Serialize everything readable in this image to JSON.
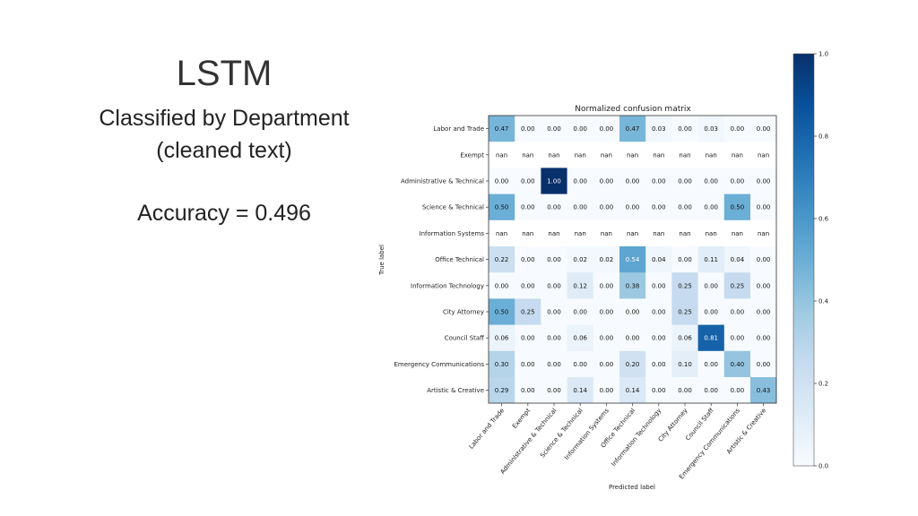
{
  "slide": {
    "title": "LSTM",
    "subtitle_line1": "Classified by Department",
    "subtitle_line2": "(cleaned text)",
    "accuracy": "Accuracy = 0.496"
  },
  "chart_data": {
    "type": "heatmap",
    "title": "Normalized confusion matrix",
    "xlabel": "Predicted label",
    "ylabel": "True label",
    "labels": [
      "Labor and Trade",
      "Exempt",
      "Administrative & Technical",
      "Science & Technical",
      "Information Systems",
      "Office Technical",
      "Information Technology",
      "City Attorney",
      "Council Staff",
      "Emergency Communications",
      "Artistic & Creative"
    ],
    "matrix": [
      [
        0.47,
        0.0,
        0.0,
        0.0,
        0.0,
        0.47,
        0.03,
        0.0,
        0.03,
        0.0,
        0.0
      ],
      [
        "nan",
        "nan",
        "nan",
        "nan",
        "nan",
        "nan",
        "nan",
        "nan",
        "nan",
        "nan",
        "nan"
      ],
      [
        0.0,
        0.0,
        1.0,
        0.0,
        0.0,
        0.0,
        0.0,
        0.0,
        0.0,
        0.0,
        0.0
      ],
      [
        0.5,
        0.0,
        0.0,
        0.0,
        0.0,
        0.0,
        0.0,
        0.0,
        0.0,
        0.5,
        0.0
      ],
      [
        "nan",
        "nan",
        "nan",
        "nan",
        "nan",
        "nan",
        "nan",
        "nan",
        "nan",
        "nan",
        "nan"
      ],
      [
        0.22,
        0.0,
        0.0,
        0.02,
        0.02,
        0.54,
        0.04,
        0.0,
        0.11,
        0.04,
        0.0
      ],
      [
        0.0,
        0.0,
        0.0,
        0.12,
        0.0,
        0.38,
        0.0,
        0.25,
        0.0,
        0.25,
        0.0
      ],
      [
        0.5,
        0.25,
        0.0,
        0.0,
        0.0,
        0.0,
        0.0,
        0.25,
        0.0,
        0.0,
        0.0
      ],
      [
        0.06,
        0.0,
        0.0,
        0.06,
        0.0,
        0.0,
        0.0,
        0.06,
        0.81,
        0.0,
        0.0
      ],
      [
        0.3,
        0.0,
        0.0,
        0.0,
        0.0,
        0.2,
        0.0,
        0.1,
        0.0,
        0.4,
        0.0
      ],
      [
        0.29,
        0.0,
        0.0,
        0.14,
        0.0,
        0.14,
        0.0,
        0.0,
        0.0,
        0.0,
        0.43
      ]
    ],
    "colorbar": {
      "range": [
        0.0,
        1.0
      ],
      "ticks": [
        "0.0",
        "0.2",
        "0.4",
        "0.6",
        "0.8",
        "1.0"
      ]
    },
    "colormap": [
      "#f7fbff",
      "#deebf7",
      "#c6dbef",
      "#9ecae1",
      "#6baed6",
      "#4292c6",
      "#2171b5",
      "#08519c",
      "#08306b"
    ]
  }
}
